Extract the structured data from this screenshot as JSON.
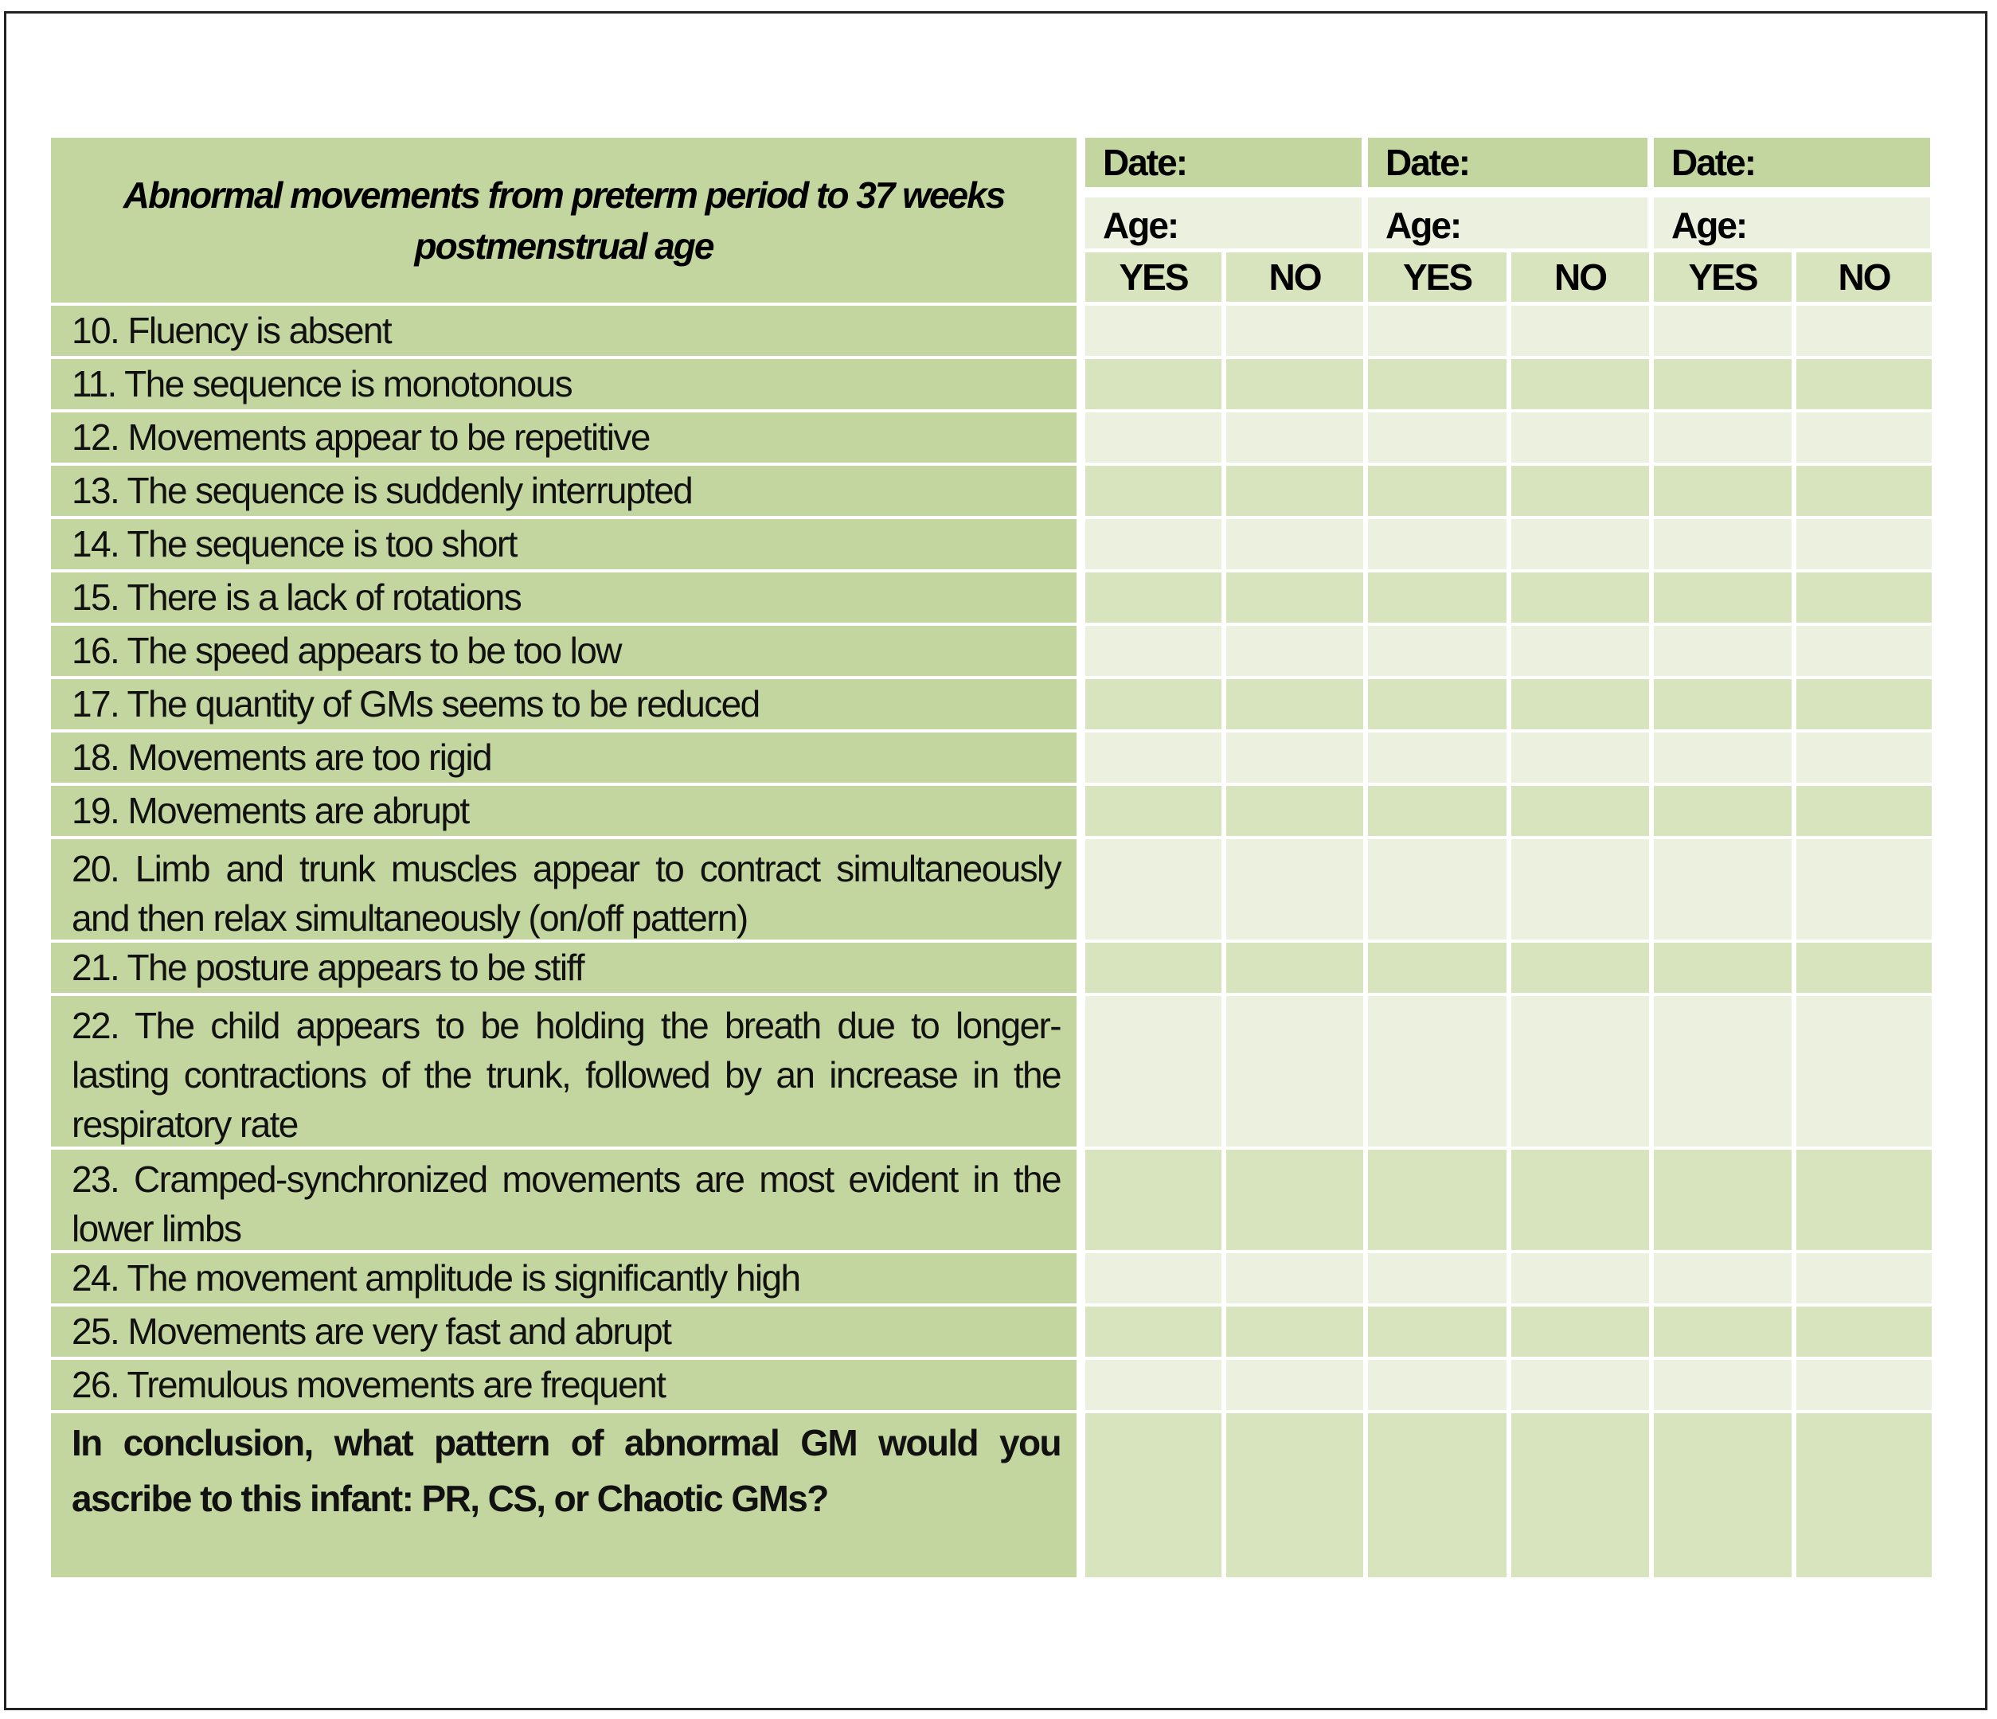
{
  "header": {
    "title_lines": [
      "Abnormal movements from preterm period to 37 weeks",
      "postmenstrual age"
    ],
    "date_label": "Date:",
    "age_label": "Age:",
    "yes_label": "YES",
    "no_label": "NO",
    "sessions": 3
  },
  "items": [
    {
      "lines": [
        "10. Fluency is absent"
      ]
    },
    {
      "lines": [
        "11. The sequence is monotonous"
      ]
    },
    {
      "lines": [
        "12. Movements appear to be repetitive"
      ]
    },
    {
      "lines": [
        "13. The sequence is suddenly interrupted"
      ]
    },
    {
      "lines": [
        "14. The sequence is too short"
      ]
    },
    {
      "lines": [
        "15. There is a lack of rotations"
      ]
    },
    {
      "lines": [
        "16. The speed appears to be too low"
      ]
    },
    {
      "lines": [
        "17. The quantity of GMs seems to be reduced"
      ]
    },
    {
      "lines": [
        "18. Movements are too rigid"
      ]
    },
    {
      "lines": [
        "19. Movements are abrupt"
      ]
    },
    {
      "lines": [
        "20. Limb and trunk muscles appear to contract simultaneously",
        "and then relax simultaneously (on/off pattern)"
      ]
    },
    {
      "lines": [
        "21. The posture appears to be stiff"
      ]
    },
    {
      "lines": [
        "22. The child appears to be holding the breath due to longer-",
        "lasting contractions of the trunk, followed by an increase in the",
        "respiratory rate"
      ]
    },
    {
      "lines": [
        "23. Cramped-synchronized movements are most evident in the",
        "lower limbs"
      ]
    },
    {
      "lines": [
        "24. The movement amplitude is significantly high"
      ]
    },
    {
      "lines": [
        "25. Movements are very fast and abrupt"
      ]
    },
    {
      "lines": [
        "26. Tremulous movements are frequent"
      ]
    }
  ],
  "conclusion": {
    "lines": [
      "In conclusion, what pattern of abnormal GM would you",
      "ascribe to this infant: PR, CS, or Chaotic GMs?"
    ]
  },
  "colors": {
    "dark": "#c4d69f",
    "mid": "#d7e4bd",
    "light": "#ebf1de"
  }
}
